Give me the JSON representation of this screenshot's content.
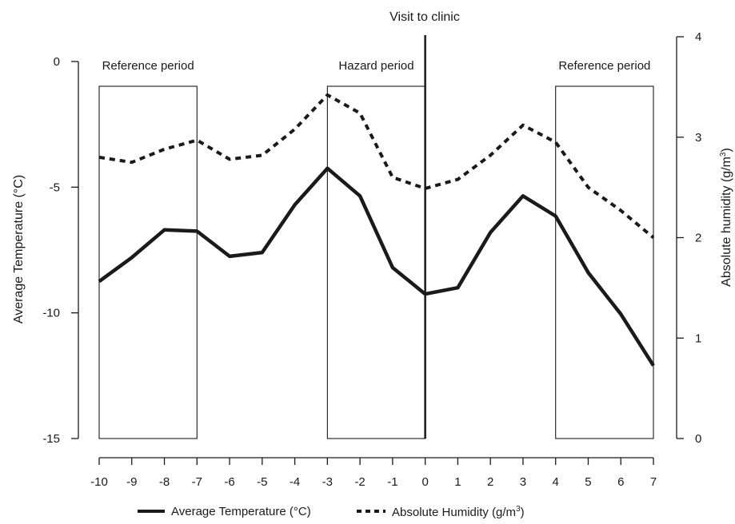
{
  "chart_data": {
    "type": "line",
    "x": [
      -10,
      -9,
      -8,
      -7,
      -6,
      -5,
      -4,
      -3,
      -2,
      -1,
      0,
      1,
      2,
      3,
      4,
      5,
      6,
      7
    ],
    "series": [
      {
        "name": "Average Temperature",
        "axis": "left",
        "style": "solid",
        "color": "#1a1a1a",
        "values": [
          -8.75,
          -7.8,
          -6.7,
          -6.75,
          -7.75,
          -7.6,
          -5.7,
          -4.25,
          -5.35,
          -8.2,
          -9.25,
          -9.0,
          -6.8,
          -5.35,
          -6.15,
          -8.4,
          -10.05,
          -12.1
        ]
      },
      {
        "name": "Absolute Humidity",
        "axis": "right",
        "style": "dashed",
        "color": "#1a1a1a",
        "values": [
          2.8,
          2.75,
          2.88,
          2.97,
          2.78,
          2.82,
          3.08,
          3.42,
          3.24,
          2.6,
          2.49,
          2.58,
          2.82,
          3.12,
          2.95,
          2.5,
          2.27,
          2.0
        ]
      }
    ],
    "xlim": [
      -10,
      7
    ],
    "ylim_left": [
      -15,
      0
    ],
    "ylim_right": [
      0,
      4
    ],
    "xticks": [
      "-10",
      "-9",
      "-8",
      "-7",
      "-6",
      "-5",
      "-4",
      "-3",
      "-2",
      "-1",
      "0",
      "1",
      "2",
      "3",
      "4",
      "5",
      "6",
      "7"
    ],
    "yticks_left": [
      "0",
      "-5",
      "-10",
      "-15"
    ],
    "yticks_left_values": [
      0,
      -5,
      -10,
      -15
    ],
    "yticks_right": [
      "4",
      "3",
      "2",
      "1",
      "0"
    ],
    "yticks_right_values": [
      4,
      3,
      2,
      1,
      0
    ],
    "ylabel_left": "Average Temperature  (°C)",
    "ylabel_right_main": "Absolute humidity (g/m",
    "ylabel_right_sup": "3",
    "ylabel_right_end": ")",
    "marker_x": 0,
    "marker_label": "Visit to clinic",
    "periods": [
      {
        "label": "Reference period",
        "x_start": -10,
        "x_end": -7
      },
      {
        "label": "Hazard period",
        "x_start": -3,
        "x_end": 0
      },
      {
        "label": "Reference period",
        "x_start": 4,
        "x_end": 7
      }
    ],
    "legend": {
      "placement": "bottom",
      "temperature": "Average Temperature  (°C)",
      "humidity_main": "Absolute Humidity (g/m",
      "humidity_sup": "3",
      "humidity_end": ")"
    },
    "grid": false
  }
}
